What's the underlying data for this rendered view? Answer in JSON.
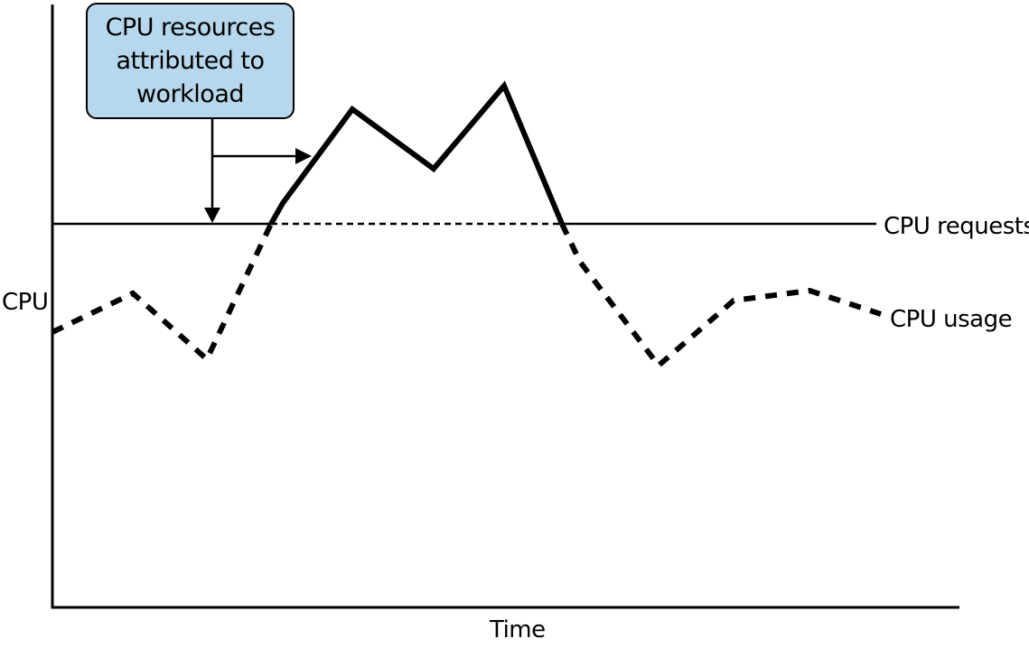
{
  "colors": {
    "callout_fill": "#b7d8ec",
    "stroke": "#000000",
    "background": "#ffffff"
  },
  "axes": {
    "y_label": "CPU",
    "x_label": "Time"
  },
  "lines": {
    "requests_label": "CPU requests",
    "usage_label": "CPU usage"
  },
  "callout": {
    "text": "CPU resources\nattributed to\nworkload"
  }
}
